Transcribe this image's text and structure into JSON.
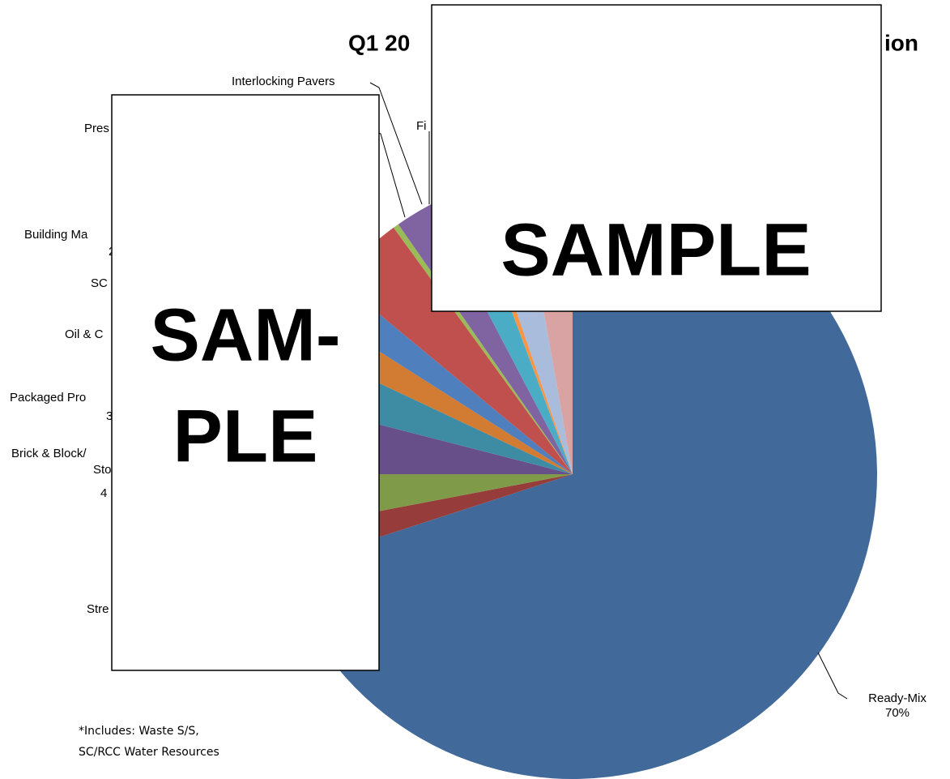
{
  "chart_data": {
    "type": "pie",
    "title": [
      "Q1 20",
      "ion"
    ],
    "values": [
      70,
      2,
      3,
      4,
      3,
      2,
      2,
      4,
      0.3,
      2,
      2,
      0.4,
      2.5,
      2.8
    ],
    "colors": [
      "#416a9b",
      "#963c3a",
      "#7f9a48",
      "#67508a",
      "#3d8ca3",
      "#d27b33",
      "#4f7fbd",
      "#c0504d",
      "#9bbb59",
      "#8064a2",
      "#4bacc6",
      "#f79646",
      "#a9bcdc",
      "#d9a3a3"
    ],
    "labels": [
      [
        "Ready-Mix"
      ],
      [
        "Stre"
      ],
      null,
      [
        "Brick & Block/",
        "Sto"
      ],
      [
        "Packaged Pro"
      ],
      null,
      [
        "Oil & C"
      ],
      [
        "SC"
      ],
      null,
      [
        "Building Ma"
      ],
      [
        "Pres"
      ],
      [
        "Interlocking Pavers"
      ],
      [
        "Fi"
      ],
      null
    ],
    "value_labels": [
      "70%",
      null,
      null,
      "4",
      "3",
      null,
      null,
      null,
      null,
      "2",
      null,
      null,
      null,
      null
    ],
    "footnote": [
      "*Includes: Waste S/S,",
      "SC/RCC Water Resources"
    ],
    "overlays": [
      [
        "SAM-",
        "PLE"
      ],
      [
        "SAMPLE"
      ]
    ]
  }
}
